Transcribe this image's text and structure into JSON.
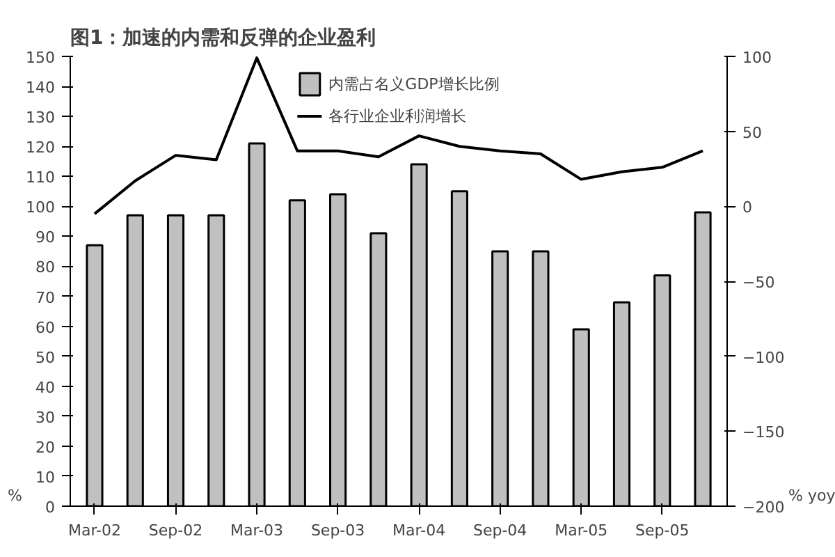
{
  "chart_data": {
    "type": "bar",
    "title": "图1：加速的内需和反弹的企业盈利",
    "ylabel": "%",
    "y2label": "% yoy",
    "categories": [
      "Mar-02",
      null,
      "Sep-02",
      null,
      "Mar-03",
      null,
      "Sep-03",
      null,
      "Mar-04",
      null,
      "Sep-04",
      null,
      "Mar-05",
      null,
      "Sep-05",
      null
    ],
    "series": [
      {
        "name": "内需占名义GDP增长比例",
        "color": "#c0c0c0",
        "values": [
          87,
          97,
          97,
          97,
          121,
          102,
          104,
          91,
          114,
          105,
          85,
          85,
          59,
          68,
          77,
          98
        ]
      },
      {
        "name": "各行业企业利润增长",
        "type": "line",
        "axis": "y2",
        "color": "#000000",
        "values": [
          -5,
          17,
          34,
          31,
          99,
          37,
          37,
          33,
          47,
          40,
          37,
          35,
          18,
          23,
          26,
          37
        ]
      }
    ],
    "ylim": [
      0,
      150
    ],
    "yticks": [
      0,
      10,
      20,
      30,
      40,
      50,
      60,
      70,
      80,
      90,
      100,
      110,
      120,
      130,
      140,
      150
    ],
    "y2lim": [
      -200,
      100
    ],
    "y2ticks": [
      -200,
      -150,
      -100,
      -50,
      0,
      50,
      100
    ],
    "grid": false,
    "legend": "top",
    "marker": "none",
    "line_style": "solid"
  }
}
